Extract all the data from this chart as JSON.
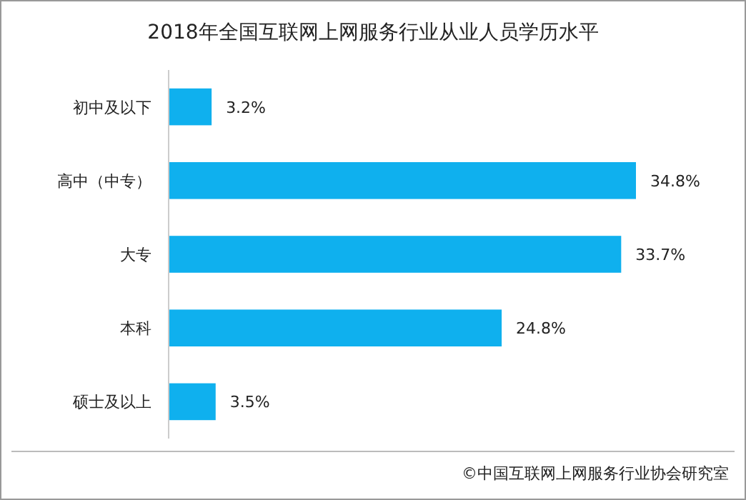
{
  "chart_data": {
    "type": "bar",
    "orientation": "horizontal",
    "title": "2018年全国互联网上网服务行业从业人员学历水平",
    "categories": [
      "初中及以下",
      "高中（中专）",
      "大专",
      "本科",
      "硕士及以上"
    ],
    "values": [
      3.2,
      34.8,
      33.7,
      24.8,
      3.5
    ],
    "value_labels": [
      "3.2%",
      "34.8%",
      "33.7%",
      "24.8%",
      "3.5%"
    ],
    "color": "#0fb0ee",
    "annotations": [
      "©中国互联网上网服务行业协会研究室"
    ]
  }
}
